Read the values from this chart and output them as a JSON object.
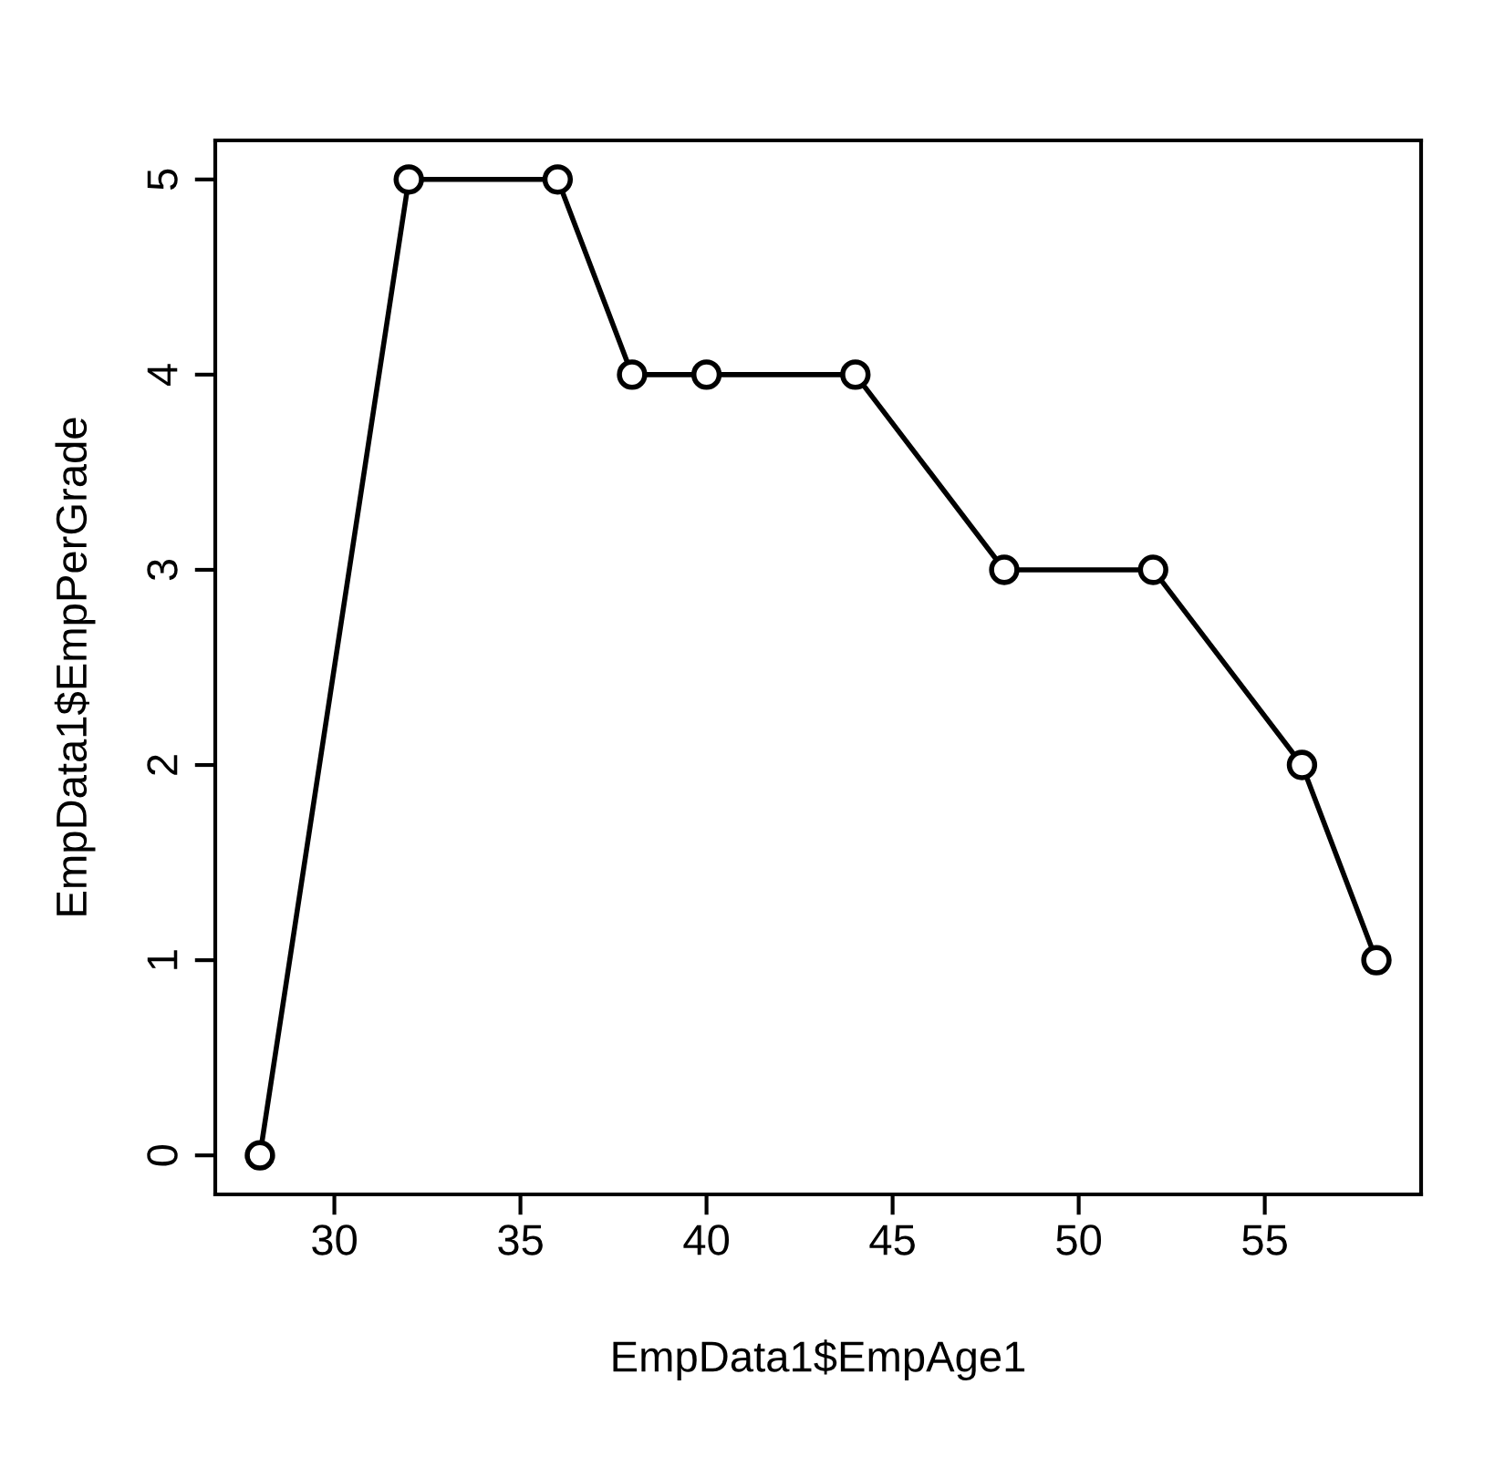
{
  "chart_data": {
    "type": "line",
    "xlabel": "EmpData1$EmpAge1",
    "ylabel": "EmpData1$EmpPerGrade",
    "x": [
      28,
      32,
      36,
      38,
      40,
      44,
      48,
      52,
      56,
      58
    ],
    "series": [
      {
        "color": "#000000",
        "values": [
          0,
          5,
          5,
          4,
          4,
          4,
          3,
          3,
          2,
          1
        ]
      }
    ],
    "xlim": [
      26.8,
      59.2
    ],
    "ylim": [
      -0.2,
      5.2
    ],
    "xticks": [
      30,
      35,
      40,
      45,
      50,
      55
    ],
    "yticks": [
      0,
      1,
      2,
      3,
      4,
      5
    ],
    "grid": false,
    "legend": false,
    "marker": "circle",
    "line_style": "solid"
  }
}
